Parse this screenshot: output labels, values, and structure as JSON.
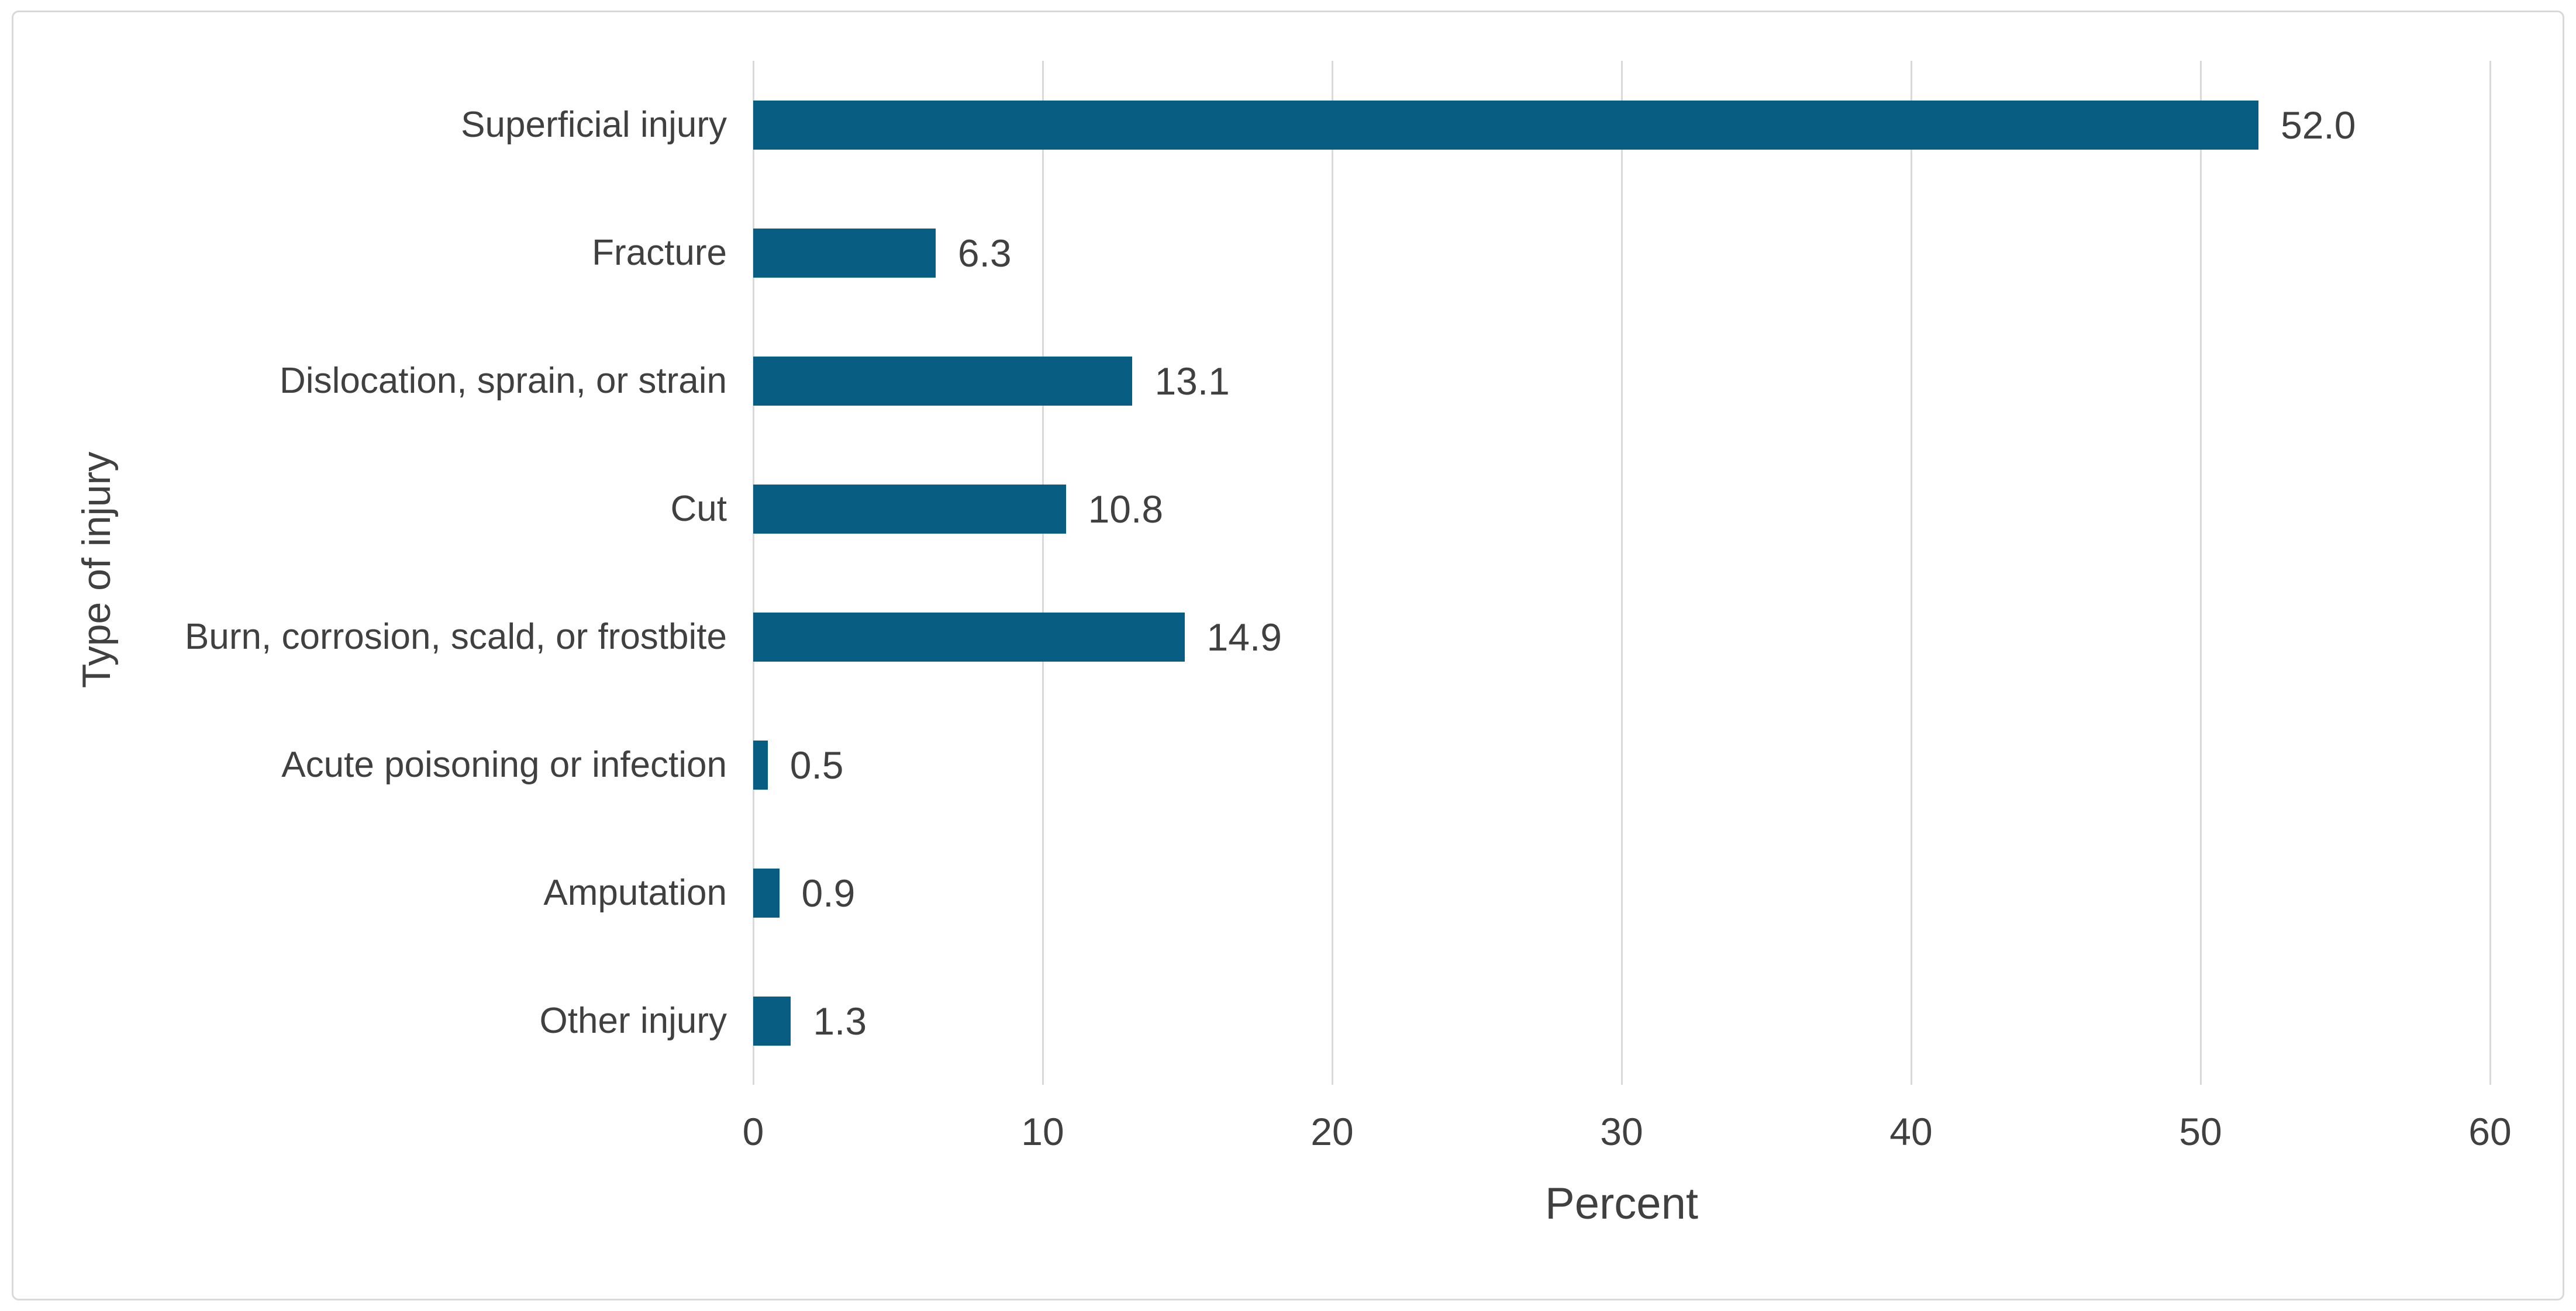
{
  "chart": {
    "x_axis_title": "Percent",
    "y_axis_title": "Type of injury"
  },
  "chart_data": {
    "type": "bar",
    "orientation": "horizontal",
    "title": "",
    "categories": [
      "Superficial injury",
      "Fracture",
      "Dislocation, sprain, or strain",
      "Cut",
      "Burn, corrosion, scald, or frostbite",
      "Acute poisoning or infection",
      "Amputation",
      "Other injury"
    ],
    "values": [
      52.0,
      6.3,
      13.1,
      10.8,
      14.9,
      0.5,
      0.9,
      1.3
    ],
    "data_labels": [
      "52.0",
      "6.3",
      "13.1",
      "10.8",
      "14.9",
      "0.5",
      "0.9",
      "1.3"
    ],
    "xlabel": "Percent",
    "ylabel": "Type of injury",
    "xlim": [
      0,
      60
    ],
    "xticks": [
      0,
      10,
      20,
      30,
      40,
      50,
      60
    ],
    "xtick_labels": [
      "0",
      "10",
      "20",
      "30",
      "40",
      "50",
      "60"
    ],
    "grid": "vertical-gridlines-on",
    "legend": "none",
    "bar_color": "#075E82",
    "gridline_color": "#D9D9D9",
    "text_color": "#404040",
    "frame_border_color": "#D9D9D9",
    "background_color": "#FFFFFF"
  }
}
